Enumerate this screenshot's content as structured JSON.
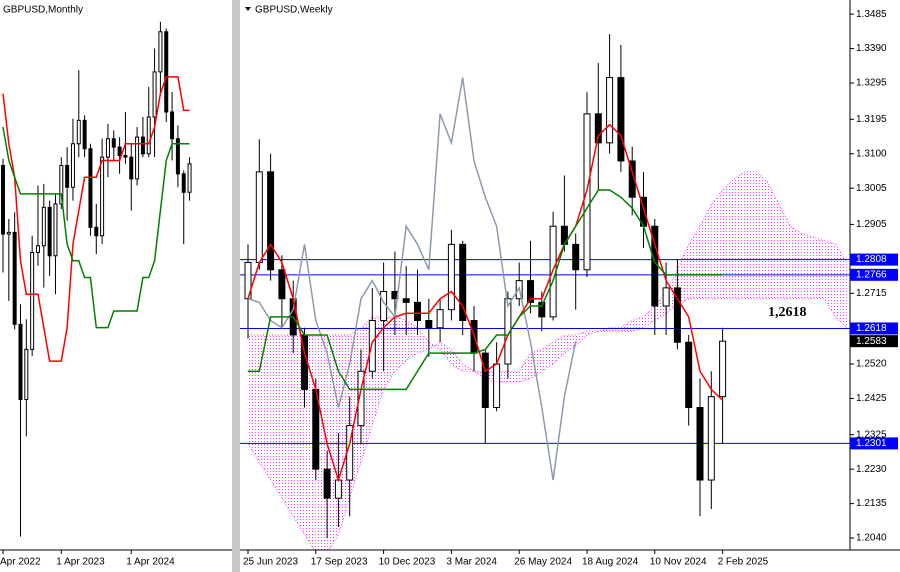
{
  "chart_data": [
    {
      "type": "candlestick",
      "title": "GBPUSD,Monthly",
      "categories": [
        "Apr 2022",
        null,
        null,
        null,
        null,
        null,
        null,
        null,
        null,
        null,
        "1 Apr 2023",
        null,
        null,
        null,
        null,
        null,
        null,
        null,
        null,
        null,
        null,
        null,
        "1 Apr 2024",
        null,
        null,
        null,
        null,
        null,
        null,
        null,
        null,
        null,
        null
      ],
      "open": [
        1.257,
        1.216,
        1.217,
        1.162,
        1.117,
        1.147,
        1.205,
        1.209,
        1.232,
        1.203,
        1.234,
        1.257,
        1.244,
        1.27,
        1.284,
        1.267,
        1.22,
        1.215,
        1.262,
        1.273,
        1.268,
        1.263,
        1.262,
        1.249,
        1.274,
        1.264,
        1.286,
        1.313,
        1.337,
        1.289,
        1.273,
        1.252,
        1.241
      ],
      "high": [
        1.261,
        1.225,
        1.229,
        1.174,
        1.165,
        1.215,
        1.245,
        1.246,
        1.236,
        1.24,
        1.262,
        1.268,
        1.285,
        1.314,
        1.287,
        1.27,
        1.234,
        1.273,
        1.282,
        1.278,
        1.274,
        1.289,
        1.27,
        1.28,
        1.286,
        1.304,
        1.327,
        1.343,
        1.339,
        1.301,
        1.281,
        1.254,
        1.262
      ],
      "low": [
        1.193,
        1.176,
        1.159,
        1.035,
        1.095,
        1.143,
        1.197,
        1.184,
        1.191,
        1.18,
        1.231,
        1.224,
        1.236,
        1.262,
        1.262,
        1.215,
        1.204,
        1.21,
        1.25,
        1.26,
        1.252,
        1.258,
        1.23,
        1.245,
        1.262,
        1.262,
        1.262,
        1.3,
        1.283,
        1.26,
        1.244,
        1.21,
        1.236
      ],
      "close": [
        1.216,
        1.217,
        1.162,
        1.117,
        1.147,
        1.205,
        1.209,
        1.232,
        1.203,
        1.234,
        1.257,
        1.244,
        1.27,
        1.284,
        1.267,
        1.22,
        1.215,
        1.262,
        1.273,
        1.268,
        1.263,
        1.262,
        1.249,
        1.274,
        1.264,
        1.286,
        1.313,
        1.337,
        1.289,
        1.273,
        1.252,
        1.241,
        1.258
      ],
      "up_color": "#ffffff",
      "down_color": "#000000",
      "series": [
        {
          "color": "#ff0000",
          "values": [
            1.3,
            1.27,
            1.25,
            1.2,
            1.18,
            1.18,
            1.18,
            1.16,
            1.14,
            1.14,
            1.14,
            1.16,
            1.21,
            1.23,
            1.25,
            1.25,
            1.25,
            1.26,
            1.26,
            1.26,
            1.26,
            1.27,
            1.27,
            1.27,
            1.27,
            1.27,
            1.28,
            1.3,
            1.31,
            1.31,
            1.31,
            1.29,
            1.29
          ]
        },
        {
          "color": "#008000",
          "values": [
            1.28,
            1.26,
            1.25,
            1.24,
            1.24,
            1.24,
            1.24,
            1.24,
            1.24,
            1.24,
            1.24,
            1.21,
            1.2,
            1.2,
            1.19,
            1.19,
            1.16,
            1.16,
            1.16,
            1.17,
            1.17,
            1.17,
            1.17,
            1.17,
            1.19,
            1.19,
            1.2,
            1.23,
            1.26,
            1.27,
            1.27,
            1.27,
            1.27
          ]
        }
      ],
      "ylim": [
        1.027,
        1.356
      ]
    },
    {
      "type": "candlestick",
      "title": "GBPUSD,Weekly",
      "categories": [
        "25 Jun 2023",
        null,
        null,
        null,
        null,
        null,
        "17 Sep 2023",
        null,
        null,
        null,
        null,
        null,
        "10 Dec 2023",
        null,
        null,
        null,
        null,
        null,
        "3 Mar 2024",
        null,
        null,
        null,
        null,
        null,
        "26 May 2024",
        null,
        null,
        null,
        null,
        null,
        "18 Aug 2024",
        null,
        null,
        null,
        null,
        null,
        "10 Nov 2024",
        null,
        null,
        null,
        null,
        null,
        "2 Feb 2025",
        null,
        null,
        null,
        null,
        null,
        null,
        null,
        null,
        null,
        null,
        null
      ],
      "open": [
        1.27,
        1.28,
        1.305,
        1.278,
        1.27,
        1.26,
        1.245,
        1.223,
        1.215,
        1.22,
        1.235,
        1.25,
        1.264,
        1.272,
        1.27,
        1.269,
        1.264,
        1.262,
        1.267,
        1.285,
        1.264,
        1.255,
        1.24,
        1.252,
        1.27,
        1.275,
        1.269,
        1.265,
        1.29,
        1.285,
        1.278,
        1.321,
        1.313,
        1.331,
        1.308,
        1.298,
        1.29,
        1.268,
        1.273,
        1.258,
        1.24,
        1.22,
        1.243,
        null,
        null,
        null,
        null,
        null,
        null,
        null,
        null,
        null,
        null,
        null
      ],
      "high": [
        1.285,
        1.314,
        1.31,
        1.282,
        1.275,
        1.262,
        1.248,
        1.228,
        1.233,
        1.243,
        1.256,
        1.273,
        1.28,
        1.283,
        1.279,
        1.278,
        1.27,
        1.27,
        1.289,
        1.286,
        1.268,
        1.256,
        1.258,
        1.272,
        1.28,
        1.286,
        1.272,
        1.294,
        1.304,
        1.288,
        1.327,
        1.335,
        1.343,
        1.34,
        1.312,
        1.305,
        1.292,
        1.28,
        1.281,
        1.26,
        1.248,
        1.25,
        1.262,
        null,
        null,
        null,
        null,
        null,
        null,
        null,
        null,
        null,
        null,
        null
      ],
      "low": [
        1.259,
        1.278,
        1.275,
        1.262,
        1.255,
        1.24,
        1.22,
        1.204,
        1.207,
        1.21,
        1.23,
        1.248,
        1.25,
        1.26,
        1.26,
        1.26,
        1.254,
        1.258,
        1.264,
        1.26,
        1.25,
        1.23,
        1.239,
        1.248,
        1.268,
        1.266,
        1.261,
        1.264,
        1.283,
        1.267,
        1.276,
        1.3,
        1.31,
        1.305,
        1.293,
        1.284,
        1.26,
        1.26,
        1.256,
        1.235,
        1.21,
        1.212,
        1.23,
        null,
        null,
        null,
        null,
        null,
        null,
        null,
        null,
        null,
        null,
        null
      ],
      "close": [
        1.28,
        1.305,
        1.278,
        1.27,
        1.26,
        1.245,
        1.223,
        1.215,
        1.22,
        1.235,
        1.25,
        1.264,
        1.272,
        1.27,
        1.269,
        1.264,
        1.262,
        1.267,
        1.285,
        1.264,
        1.255,
        1.24,
        1.252,
        1.27,
        1.275,
        1.269,
        1.265,
        1.29,
        1.285,
        1.278,
        1.321,
        1.313,
        1.331,
        1.308,
        1.298,
        1.29,
        1.268,
        1.273,
        1.258,
        1.24,
        1.22,
        1.243,
        1.2583,
        null,
        null,
        null,
        null,
        null,
        null,
        null,
        null,
        null,
        null,
        null
      ],
      "up_color": "#ffffff",
      "down_color": "#000000",
      "cloud": {
        "color": "#ff33ff",
        "span_a": [
          1.23,
          1.225,
          1.22,
          1.215,
          1.21,
          1.205,
          1.2,
          1.2,
          1.205,
          1.215,
          1.225,
          1.235,
          1.245,
          1.25,
          1.253,
          1.255,
          1.256,
          1.258,
          1.256,
          1.252,
          1.25,
          1.248,
          1.247,
          1.247,
          1.247,
          1.248,
          1.25,
          1.252,
          1.255,
          1.257,
          1.26,
          1.261,
          1.262,
          1.262,
          1.264,
          1.265,
          1.268,
          1.272,
          1.278,
          1.285,
          1.29,
          1.296,
          1.3,
          1.303,
          1.305,
          1.305,
          1.302,
          1.296,
          1.29,
          1.288,
          1.287,
          1.286,
          1.285,
          1.28
        ],
        "span_b": [
          1.26,
          1.26,
          1.26,
          1.26,
          1.26,
          1.26,
          1.26,
          1.26,
          1.26,
          1.26,
          1.262,
          1.265,
          1.265,
          1.265,
          1.264,
          1.262,
          1.258,
          1.256,
          1.252,
          1.25,
          1.25,
          1.25,
          1.25,
          1.25,
          1.25,
          1.255,
          1.256,
          1.258,
          1.26,
          1.26,
          1.261,
          1.261,
          1.261,
          1.261,
          1.261,
          1.262,
          1.264,
          1.266,
          1.268,
          1.27,
          1.27,
          1.27,
          1.27,
          1.27,
          1.27,
          1.27,
          1.27,
          1.27,
          1.27,
          1.27,
          1.27,
          1.27,
          1.265,
          1.262
        ]
      },
      "series": [
        {
          "color": "#8c9aad",
          "values": [
            1.27,
            1.269,
            1.264,
            1.262,
            1.267,
            1.285,
            1.264,
            1.255,
            1.24,
            1.252,
            1.27,
            1.275,
            1.269,
            1.265,
            1.29,
            1.285,
            1.278,
            1.321,
            1.313,
            1.331,
            1.308,
            1.298,
            1.29,
            1.268,
            1.273,
            1.258,
            1.24,
            1.22,
            1.243,
            1.2583,
            null,
            null,
            null,
            null,
            null,
            null,
            null,
            null,
            null,
            null,
            null,
            null,
            null,
            null,
            null,
            null,
            null,
            null,
            null,
            null,
            null,
            null,
            null,
            null
          ]
        },
        {
          "color": "#ff0000",
          "values": [
            1.27,
            1.28,
            1.285,
            1.28,
            1.27,
            1.255,
            1.245,
            1.23,
            1.22,
            1.23,
            1.245,
            1.258,
            1.262,
            1.265,
            1.266,
            1.266,
            1.266,
            1.27,
            1.272,
            1.268,
            1.26,
            1.25,
            1.252,
            1.26,
            1.265,
            1.27,
            1.27,
            1.278,
            1.285,
            1.29,
            1.3,
            1.315,
            1.318,
            1.315,
            1.305,
            1.295,
            1.285,
            1.275,
            1.27,
            1.265,
            1.25,
            1.245,
            1.242,
            null,
            null,
            null,
            null,
            null,
            null,
            null,
            null,
            null,
            null,
            null
          ]
        },
        {
          "color": "#008000",
          "values": [
            1.25,
            1.25,
            1.265,
            1.265,
            1.265,
            1.26,
            1.26,
            1.26,
            1.25,
            1.245,
            1.245,
            1.245,
            1.245,
            1.245,
            1.245,
            1.25,
            1.255,
            1.255,
            1.255,
            1.255,
            1.255,
            1.256,
            1.26,
            1.26,
            1.265,
            1.268,
            1.268,
            1.275,
            1.285,
            1.29,
            1.295,
            1.3,
            1.3,
            1.298,
            1.295,
            1.29,
            1.28,
            1.2766,
            1.2766,
            1.2766,
            1.2766,
            1.2766,
            1.2766,
            null,
            null,
            null,
            null,
            null,
            null,
            null,
            null,
            null,
            null,
            null
          ]
        }
      ],
      "hlines": [
        {
          "value": 1.2808,
          "color": "#0000ff"
        },
        {
          "value": 1.2766,
          "color": "#0000ff"
        },
        {
          "value": 1.2618,
          "color": "#0000ff"
        },
        {
          "value": 1.2301,
          "color": "#0000ff"
        }
      ],
      "annotation": "1,2618",
      "ylim": [
        1.2007,
        1.3524
      ],
      "yticks": [
        1.3485,
        {
          "value": 1.339,
          "label": "1.3390"
        },
        1.3295,
        1.3195,
        {
          "value": 1.31,
          "label": "1.3100"
        },
        1.3005,
        1.2905,
        1.2715,
        {
          "value": 1.252,
          "label": "1.2520"
        },
        1.2425,
        1.2325,
        {
          "value": 1.223,
          "label": "1.2230"
        },
        1.2135,
        {
          "value": 1.204,
          "label": "1.2040"
        }
      ]
    }
  ]
}
